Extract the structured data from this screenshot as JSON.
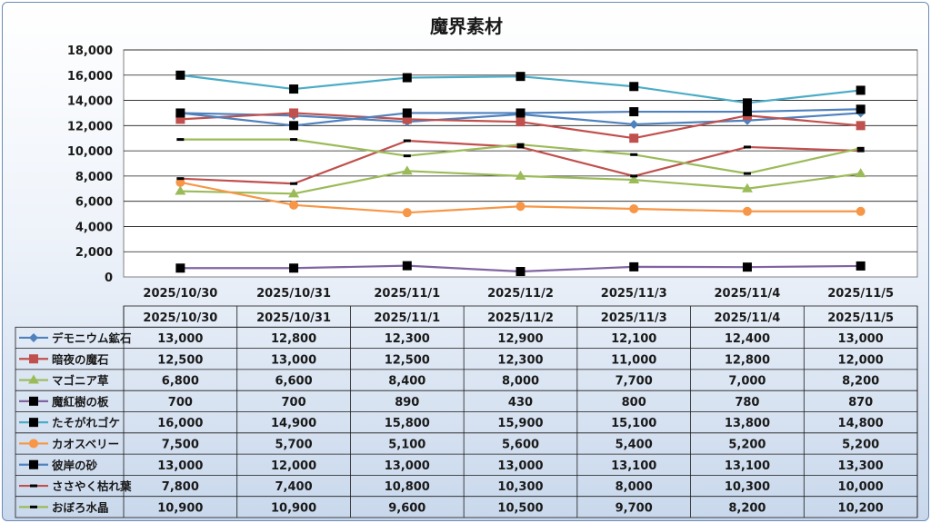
{
  "chart_data": {
    "type": "line",
    "title": "魔界素材",
    "categories": [
      "2025/10/30",
      "2025/10/31",
      "2025/11/1",
      "2025/11/2",
      "2025/11/3",
      "2025/11/4",
      "2025/11/5"
    ],
    "ylim": [
      0,
      18000
    ],
    "yticks": [
      "0",
      "2,000",
      "4,000",
      "6,000",
      "8,000",
      "10,000",
      "12,000",
      "14,000",
      "16,000",
      "18,000"
    ],
    "grid": true,
    "legend": "data-table",
    "series": [
      {
        "name": "デモニウム鉱石",
        "color": "#4f81bd",
        "marker": "diamond",
        "values": [
          13000,
          12800,
          12300,
          12900,
          12100,
          12400,
          13000
        ],
        "labels": [
          "13,000",
          "12,800",
          "12,300",
          "12,900",
          "12,100",
          "12,400",
          "13,000"
        ]
      },
      {
        "name": "暗夜の魔石",
        "color": "#c0504d",
        "marker": "square",
        "values": [
          12500,
          13000,
          12500,
          12300,
          11000,
          12800,
          12000
        ],
        "labels": [
          "12,500",
          "13,000",
          "12,500",
          "12,300",
          "11,000",
          "12,800",
          "12,000"
        ]
      },
      {
        "name": "マゴニア草",
        "color": "#9bbb59",
        "marker": "triangle",
        "values": [
          6800,
          6600,
          8400,
          8000,
          7700,
          7000,
          8200
        ],
        "labels": [
          "6,800",
          "6,600",
          "8,400",
          "8,000",
          "7,700",
          "7,000",
          "8,200"
        ]
      },
      {
        "name": "魔紅樹の板",
        "color": "#8064a2",
        "marker": "black-square",
        "values": [
          700,
          700,
          890,
          430,
          800,
          780,
          870
        ],
        "labels": [
          "700",
          "700",
          "890",
          "430",
          "800",
          "780",
          "870"
        ]
      },
      {
        "name": "たそがれゴケ",
        "color": "#4bacc6",
        "marker": "black-square",
        "values": [
          16000,
          14900,
          15800,
          15900,
          15100,
          13800,
          14800
        ],
        "labels": [
          "16,000",
          "14,900",
          "15,800",
          "15,900",
          "15,100",
          "13,800",
          "14,800"
        ]
      },
      {
        "name": "カオスベリー",
        "color": "#f79646",
        "marker": "circle",
        "values": [
          7500,
          5700,
          5100,
          5600,
          5400,
          5200,
          5200
        ],
        "labels": [
          "7,500",
          "5,700",
          "5,100",
          "5,600",
          "5,400",
          "5,200",
          "5,200"
        ]
      },
      {
        "name": "彼岸の砂",
        "color": "#4f81bd",
        "marker": "black-square",
        "values": [
          13000,
          12000,
          13000,
          13000,
          13100,
          13100,
          13300
        ],
        "labels": [
          "13,000",
          "12,000",
          "13,000",
          "13,000",
          "13,100",
          "13,100",
          "13,300"
        ]
      },
      {
        "name": "ささやく枯れ葉",
        "color": "#c0504d",
        "marker": "dash",
        "values": [
          7800,
          7400,
          10800,
          10300,
          8000,
          10300,
          10000
        ],
        "labels": [
          "7,800",
          "7,400",
          "10,800",
          "10,300",
          "8,000",
          "10,300",
          "10,000"
        ]
      },
      {
        "name": "おぼろ水晶",
        "color": "#9bbb59",
        "marker": "dash",
        "values": [
          10900,
          10900,
          9600,
          10500,
          9700,
          8200,
          10200
        ],
        "labels": [
          "10,900",
          "10,900",
          "9,600",
          "10,500",
          "9,700",
          "8,200",
          "10,200"
        ]
      }
    ]
  }
}
